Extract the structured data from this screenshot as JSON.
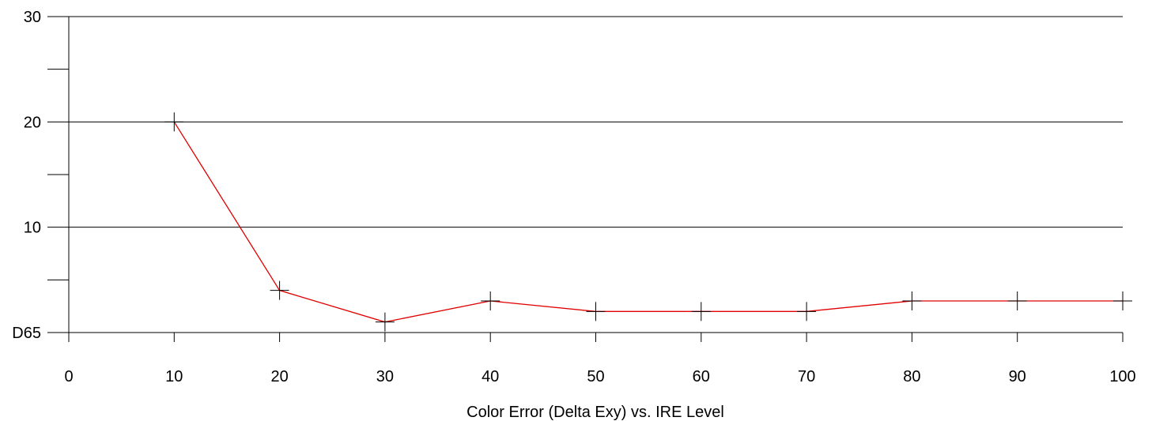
{
  "chart_data": {
    "type": "line",
    "title": "",
    "xlabel": "Color Error (Delta Exy) vs. IRE Level",
    "ylabel": "",
    "xlim": [
      0,
      100
    ],
    "ylim": [
      0,
      30
    ],
    "grid": true,
    "x_ticks": [
      0,
      10,
      20,
      30,
      40,
      50,
      60,
      70,
      80,
      90,
      100
    ],
    "x_tick_labels": [
      "0",
      "10",
      "20",
      "30",
      "40",
      "50",
      "60",
      "70",
      "80",
      "90",
      "100"
    ],
    "y_ticks": [
      0,
      10,
      20,
      30
    ],
    "y_tick_labels": [
      "D65",
      "10",
      "20",
      "30"
    ],
    "y_minor_ticks": [
      5,
      15,
      25
    ],
    "series": [
      {
        "x": [
          10,
          20,
          30,
          40,
          50,
          60,
          70,
          80,
          90,
          100
        ],
        "values": [
          20,
          4,
          1,
          3,
          2,
          2,
          2,
          3,
          3,
          3
        ],
        "color": "#e00000",
        "marker": "cross"
      }
    ],
    "colors": {
      "grid": "#000000",
      "axis": "#000000",
      "baseline": "#7f7f7f"
    }
  }
}
